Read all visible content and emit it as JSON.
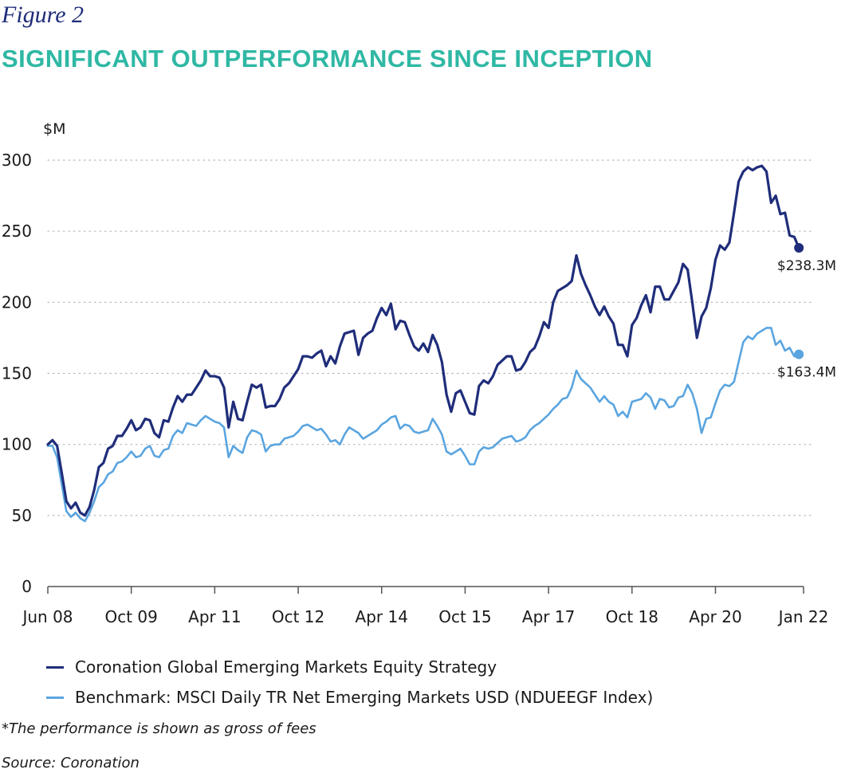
{
  "figure_label": "Figure 2",
  "title": "SIGNIFICANT OUTPERFORMANCE SINCE INCEPTION",
  "footnote": "*The performance is shown as gross of fees",
  "source": "Source: Coronation",
  "colors": {
    "title": "#2fb8a4",
    "strategy": "#1f2d7a",
    "benchmark": "#5aa5e0",
    "grid": "#b5b5b5"
  },
  "chart_data": {
    "type": "line",
    "ylabel": "$M",
    "ylim": [
      0,
      300
    ],
    "yticks": [
      0,
      50,
      100,
      150,
      200,
      250,
      300
    ],
    "xlim": [
      0,
      163
    ],
    "xtick_positions": [
      0,
      18,
      36,
      54,
      72,
      90,
      108,
      126,
      144,
      163
    ],
    "xtick_labels": [
      "Jun 08",
      "Oct 09",
      "Apr 11",
      "Oct 12",
      "Apr 14",
      "Oct 15",
      "Apr 17",
      "Oct 18",
      "Apr 20",
      "Jan 22"
    ],
    "grid": "horizontal dotted",
    "legend_position": "bottom",
    "series": [
      {
        "name": "Coronation Global Emerging Markets Equity Strategy",
        "end_label": "$238.3M",
        "values": [
          100,
          103,
          99,
          80,
          60,
          55,
          59,
          52,
          50,
          56,
          68,
          84,
          87,
          97,
          99,
          106,
          106,
          111,
          117,
          110,
          112,
          118,
          117,
          108,
          105,
          117,
          116,
          126,
          134,
          130,
          135,
          135,
          140,
          145,
          152,
          148,
          148,
          147,
          140,
          112,
          130,
          118,
          117,
          130,
          142,
          140,
          142,
          126,
          127,
          127,
          132,
          140,
          143,
          148,
          153,
          162,
          162,
          161,
          164,
          166,
          155,
          162,
          157,
          169,
          178,
          179,
          180,
          163,
          175,
          178,
          180,
          189,
          196,
          191,
          199,
          181,
          187,
          186,
          177,
          169,
          166,
          171,
          165,
          177,
          170,
          158,
          135,
          123,
          136,
          138,
          130,
          122,
          121,
          141,
          145,
          143,
          148,
          156,
          159,
          162,
          162,
          152,
          153,
          158,
          165,
          168,
          176,
          186,
          182,
          200,
          208,
          210,
          212,
          215,
          233,
          220,
          212,
          205,
          197,
          191,
          197,
          190,
          185,
          170,
          170,
          162,
          184,
          189,
          198,
          205,
          193,
          211,
          211,
          202,
          202,
          208,
          214,
          227,
          223,
          200,
          175,
          190,
          196,
          210,
          230,
          240,
          237,
          242,
          263,
          285,
          292,
          295,
          293,
          295,
          296,
          292,
          270,
          275,
          262,
          263,
          247,
          246,
          238.3
        ]
      },
      {
        "name": "Benchmark: MSCI Daily TR Net Emerging Markets USD (NDUEEGF Index)",
        "end_label": "$163.4M",
        "values": [
          99,
          99,
          91,
          72,
          53,
          49,
          52,
          48,
          46,
          52,
          60,
          70,
          73,
          79,
          81,
          87,
          88,
          91,
          95,
          91,
          92,
          97,
          99,
          92,
          91,
          96,
          97,
          106,
          110,
          108,
          115,
          114,
          113,
          117,
          120,
          118,
          116,
          115,
          112,
          91,
          99,
          96,
          94,
          105,
          110,
          109,
          107,
          95,
          99,
          100,
          100,
          104,
          105,
          106,
          109,
          113,
          114,
          112,
          110,
          111,
          107,
          102,
          103,
          100,
          107,
          112,
          110,
          108,
          104,
          106,
          108,
          110,
          114,
          116,
          119,
          120,
          111,
          114,
          113,
          109,
          108,
          109,
          110,
          118,
          113,
          107,
          95,
          93,
          95,
          97,
          92,
          86,
          86,
          95,
          98,
          97,
          98,
          101,
          104,
          105,
          106,
          102,
          103,
          105,
          110,
          113,
          115,
          118,
          121,
          125,
          128,
          132,
          133,
          140,
          152,
          146,
          143,
          140,
          135,
          130,
          134,
          130,
          128,
          120,
          123,
          119,
          130,
          131,
          132,
          136,
          133,
          125,
          132,
          131,
          126,
          127,
          133,
          134,
          142,
          136,
          125,
          108,
          118,
          119,
          129,
          138,
          142,
          141,
          144,
          158,
          172,
          176,
          174,
          178,
          180,
          182,
          182,
          170,
          173,
          166,
          168,
          162,
          163.4
        ]
      }
    ]
  }
}
